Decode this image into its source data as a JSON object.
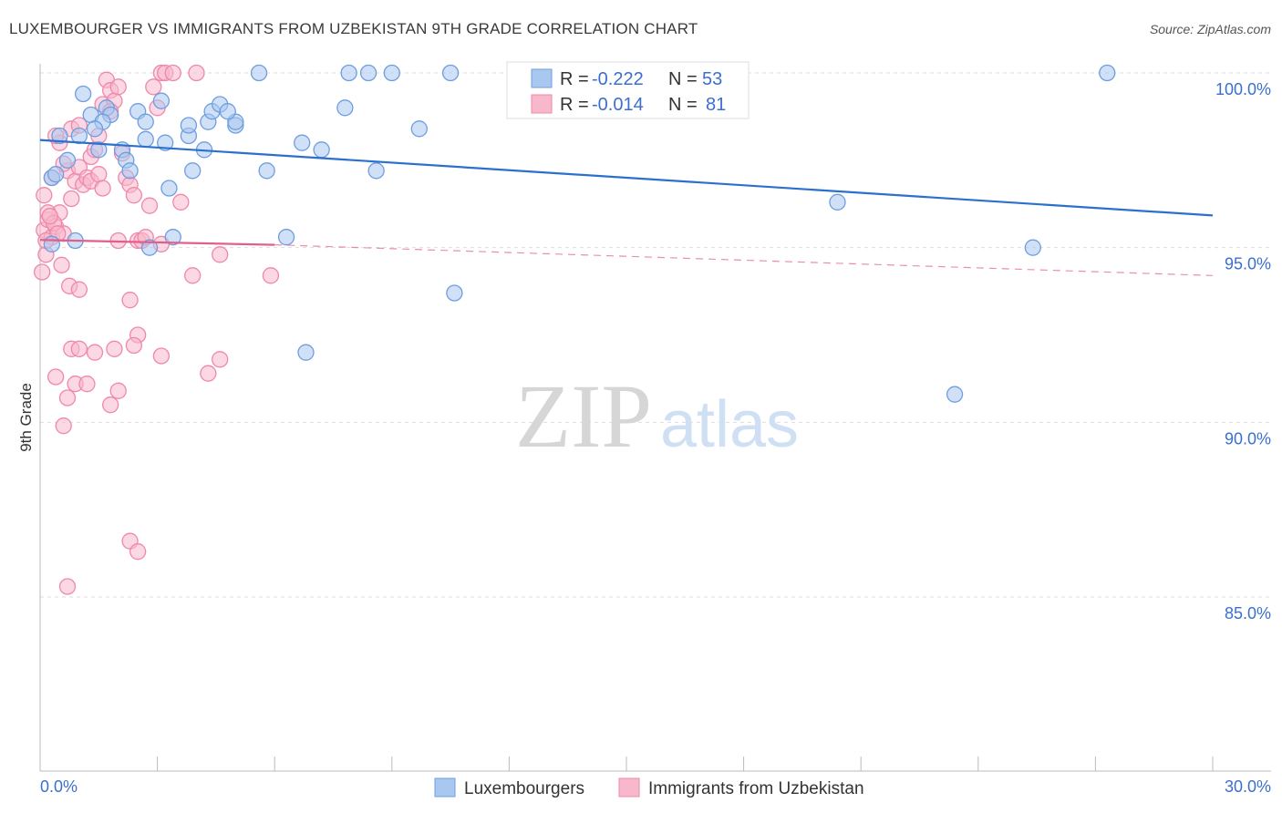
{
  "title": "LUXEMBOURGER VS IMMIGRANTS FROM UZBEKISTAN 9TH GRADE CORRELATION CHART",
  "source": "Source: ZipAtlas.com",
  "watermark": {
    "zip": "ZIP",
    "atlas": "atlas"
  },
  "colors": {
    "blue_fill": "#a9c8f0",
    "blue_stroke": "#6e9ee0",
    "blue_line": "#2b6fcf",
    "pink_fill": "#f7b8cc",
    "pink_stroke": "#ef88aa",
    "pink_line": "#e0608a",
    "accent_text": "#3b6fcf",
    "grid": "#dddddd"
  },
  "legend": {
    "rows": [
      {
        "r_label": "R =",
        "r_value": "-0.222",
        "n_label": "N =",
        "n_value": "53",
        "series": "blue"
      },
      {
        "r_label": "R =",
        "r_value": "-0.014",
        "n_label": "N =",
        "n_value": "81",
        "series": "pink"
      }
    ]
  },
  "chart_data": {
    "type": "scatter",
    "title": "LUXEMBOURGER VS IMMIGRANTS FROM UZBEKISTAN 9TH GRADE CORRELATION CHART",
    "ylabel": "9th Grade",
    "xlabel": "",
    "xlim": [
      0,
      30
    ],
    "ylim": [
      80.5,
      100.5
    ],
    "x_tick_labels": [
      "0.0%",
      "30.0%"
    ],
    "y_ticks": [
      {
        "value": 100,
        "label": "100.0%"
      },
      {
        "value": 95,
        "label": "95.0%"
      },
      {
        "value": 90,
        "label": "90.0%"
      },
      {
        "value": 85,
        "label": "85.0%"
      }
    ],
    "series": [
      {
        "name": "Luxembourgers",
        "color": "blue",
        "trend": {
          "x0": 0,
          "y0": 98.08,
          "x1": 30,
          "y1": 95.92,
          "dashed_to": null
        },
        "points": [
          [
            1.1,
            99.4
          ],
          [
            1.3,
            98.8
          ],
          [
            0.5,
            98.2
          ],
          [
            0.7,
            97.5
          ],
          [
            0.3,
            97.0
          ],
          [
            0.4,
            97.1
          ],
          [
            1.7,
            99.0
          ],
          [
            1.8,
            98.8
          ],
          [
            1.6,
            98.6
          ],
          [
            2.1,
            97.8
          ],
          [
            2.2,
            97.5
          ],
          [
            2.3,
            97.2
          ],
          [
            2.5,
            98.9
          ],
          [
            2.7,
            98.6
          ],
          [
            2.7,
            98.1
          ],
          [
            3.1,
            99.2
          ],
          [
            3.2,
            98.0
          ],
          [
            3.3,
            96.7
          ],
          [
            3.4,
            95.3
          ],
          [
            2.8,
            95.0
          ],
          [
            3.8,
            98.2
          ],
          [
            3.9,
            97.2
          ],
          [
            4.2,
            97.8
          ],
          [
            4.3,
            98.6
          ],
          [
            4.4,
            98.9
          ],
          [
            4.6,
            99.1
          ],
          [
            5.0,
            98.5
          ],
          [
            5.0,
            98.6
          ],
          [
            5.6,
            100.0
          ],
          [
            5.8,
            97.2
          ],
          [
            6.3,
            95.3
          ],
          [
            6.7,
            98.0
          ],
          [
            7.2,
            97.8
          ],
          [
            7.8,
            99.0
          ],
          [
            7.9,
            100.0
          ],
          [
            8.4,
            100.0
          ],
          [
            8.6,
            97.2
          ],
          [
            9.0,
            100.0
          ],
          [
            9.7,
            98.4
          ],
          [
            10.5,
            100.0
          ],
          [
            10.6,
            93.7
          ],
          [
            6.8,
            92.0
          ],
          [
            20.4,
            96.3
          ],
          [
            23.4,
            90.8
          ],
          [
            25.4,
            95.0
          ],
          [
            27.3,
            100.0
          ],
          [
            0.9,
            95.2
          ],
          [
            1.0,
            98.2
          ],
          [
            1.4,
            98.4
          ],
          [
            1.5,
            97.8
          ],
          [
            3.8,
            98.5
          ],
          [
            4.8,
            98.9
          ],
          [
            0.3,
            95.1
          ]
        ]
      },
      {
        "name": "Immigrants from Uzbekistan",
        "color": "pink",
        "trend": {
          "x0": 0,
          "y0": 95.22,
          "x1": 6.0,
          "y1": 95.08,
          "dashed_to": {
            "x": 30,
            "y": 94.2
          }
        },
        "points": [
          [
            0.1,
            95.5
          ],
          [
            0.2,
            95.8
          ],
          [
            0.1,
            96.5
          ],
          [
            0.05,
            94.3
          ],
          [
            0.15,
            94.8
          ],
          [
            0.3,
            95.3
          ],
          [
            0.4,
            95.6
          ],
          [
            0.5,
            96.0
          ],
          [
            0.6,
            95.4
          ],
          [
            0.7,
            97.2
          ],
          [
            0.8,
            96.4
          ],
          [
            0.9,
            96.9
          ],
          [
            1.0,
            97.3
          ],
          [
            1.1,
            96.8
          ],
          [
            1.2,
            97.0
          ],
          [
            1.3,
            97.6
          ],
          [
            1.4,
            97.8
          ],
          [
            1.5,
            98.2
          ],
          [
            1.6,
            99.1
          ],
          [
            1.7,
            99.8
          ],
          [
            1.8,
            99.5
          ],
          [
            1.9,
            99.2
          ],
          [
            2.0,
            99.6
          ],
          [
            2.1,
            97.7
          ],
          [
            2.2,
            97.0
          ],
          [
            2.3,
            96.8
          ],
          [
            2.4,
            96.5
          ],
          [
            2.5,
            95.2
          ],
          [
            2.6,
            95.2
          ],
          [
            2.7,
            95.3
          ],
          [
            2.8,
            96.2
          ],
          [
            2.9,
            99.6
          ],
          [
            3.0,
            99.0
          ],
          [
            3.1,
            100.0
          ],
          [
            3.2,
            100.0
          ],
          [
            3.4,
            100.0
          ],
          [
            3.6,
            96.3
          ],
          [
            3.9,
            94.2
          ],
          [
            4.0,
            100.0
          ],
          [
            4.6,
            94.8
          ],
          [
            5.9,
            94.2
          ],
          [
            0.5,
            98.0
          ],
          [
            0.6,
            97.4
          ],
          [
            0.8,
            98.4
          ],
          [
            1.0,
            98.5
          ],
          [
            0.4,
            98.2
          ],
          [
            0.3,
            97.0
          ],
          [
            0.2,
            96.0
          ],
          [
            0.35,
            95.7
          ],
          [
            0.55,
            94.5
          ],
          [
            0.75,
            93.9
          ],
          [
            1.0,
            93.8
          ],
          [
            2.3,
            93.5
          ],
          [
            2.5,
            92.5
          ],
          [
            2.4,
            92.2
          ],
          [
            1.9,
            92.1
          ],
          [
            0.8,
            92.1
          ],
          [
            1.0,
            92.1
          ],
          [
            1.4,
            92.0
          ],
          [
            3.1,
            91.9
          ],
          [
            4.6,
            91.8
          ],
          [
            4.3,
            91.4
          ],
          [
            0.4,
            91.3
          ],
          [
            0.9,
            91.1
          ],
          [
            1.2,
            91.1
          ],
          [
            2.0,
            90.9
          ],
          [
            0.7,
            90.7
          ],
          [
            1.8,
            90.5
          ],
          [
            0.6,
            89.9
          ],
          [
            2.3,
            86.6
          ],
          [
            2.5,
            86.3
          ],
          [
            0.7,
            85.3
          ],
          [
            1.3,
            96.9
          ],
          [
            1.5,
            97.1
          ],
          [
            1.6,
            96.7
          ],
          [
            2.0,
            95.2
          ],
          [
            3.1,
            95.1
          ],
          [
            0.45,
            95.4
          ],
          [
            0.25,
            95.9
          ],
          [
            0.15,
            95.2
          ],
          [
            1.8,
            98.9
          ]
        ]
      }
    ]
  },
  "bottom_legend": {
    "items": [
      {
        "label": "Luxembourgers",
        "color": "blue"
      },
      {
        "label": "Immigrants from Uzbekistan",
        "color": "pink"
      }
    ]
  }
}
